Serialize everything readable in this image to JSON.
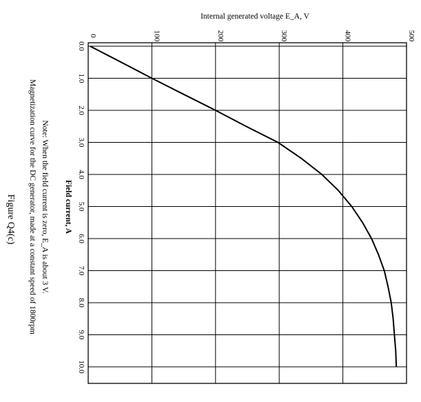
{
  "figure_title": "Figure Q4(c)",
  "caption": "Magnetization curve for the DC generator, made at a constant speed of 1800rpm",
  "note": "Note: When the field current is zero, E_A is about 3 V.",
  "chart_data": {
    "type": "line",
    "orientation": "rotated-90-clockwise",
    "xlabel": "Field current, A",
    "ylabel": "Internal generated voltage E_A, V",
    "xlim": [
      0,
      10.5
    ],
    "ylim": [
      0,
      500
    ],
    "x_ticks": [
      "0.0",
      "1.0",
      "2.0",
      "3.0",
      "4.0",
      "5.0",
      "6.0",
      "7.0",
      "8.0",
      "9.0",
      "10.0"
    ],
    "y_ticks": [
      "0",
      "100",
      "200",
      "300",
      "400",
      "500"
    ],
    "grid": true,
    "series": [
      {
        "x": [
          0.0,
          0.5,
          1.0,
          1.5,
          2.0,
          2.5,
          3.0,
          3.5,
          4.0,
          4.5,
          5.0,
          5.5,
          6.0,
          6.5,
          7.0,
          7.5,
          8.0,
          8.5,
          9.0,
          9.5,
          10.0
        ],
        "y": [
          3,
          52,
          100,
          150,
          200,
          248,
          298,
          335,
          367,
          393,
          414,
          431,
          445,
          456,
          465,
          471,
          476,
          479,
          481,
          483,
          484
        ]
      }
    ]
  }
}
